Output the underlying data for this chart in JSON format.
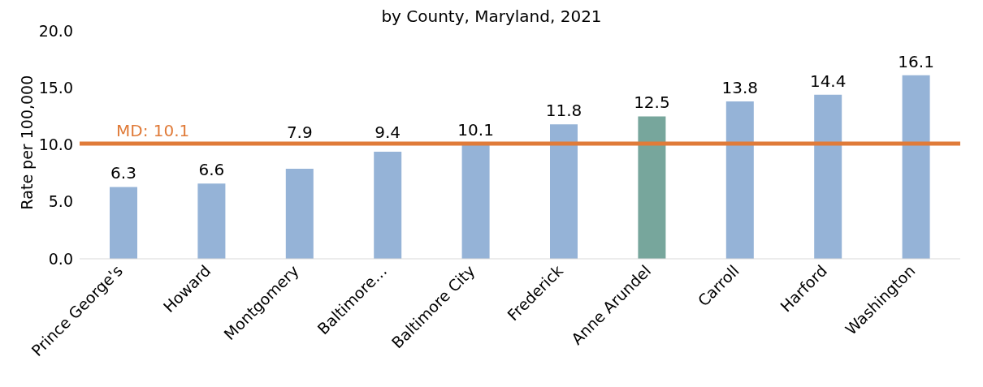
{
  "chart_data": {
    "type": "bar",
    "title": "by County, Maryland, 2021",
    "ylabel": "Rate per 100,000",
    "categories": [
      "Prince George's",
      "Howard",
      "Montgomery",
      "Baltimore…",
      "Baltimore City",
      "Frederick",
      "Anne Arundel",
      "Carroll",
      "Harford",
      "Washington"
    ],
    "values": [
      6.3,
      6.6,
      7.9,
      9.4,
      10.1,
      11.8,
      12.5,
      13.8,
      14.4,
      16.1
    ],
    "colors": [
      "#95b3d7",
      "#95b3d7",
      "#95b3d7",
      "#95b3d7",
      "#95b3d7",
      "#95b3d7",
      "#77a69c",
      "#95b3d7",
      "#95b3d7",
      "#95b3d7"
    ],
    "ylim": [
      0,
      20
    ],
    "yticks": [
      {
        "value": 0,
        "label": "0.0"
      },
      {
        "value": 5,
        "label": "5.0"
      },
      {
        "value": 10,
        "label": "10.0"
      },
      {
        "value": 15,
        "label": "15.0"
      },
      {
        "value": 20,
        "label": "20.0"
      }
    ],
    "ref_lines": [
      {
        "axis": "y",
        "value": 10.1,
        "label": "MD: 10.1",
        "color": "#e07b39"
      }
    ],
    "data_labels": true
  }
}
